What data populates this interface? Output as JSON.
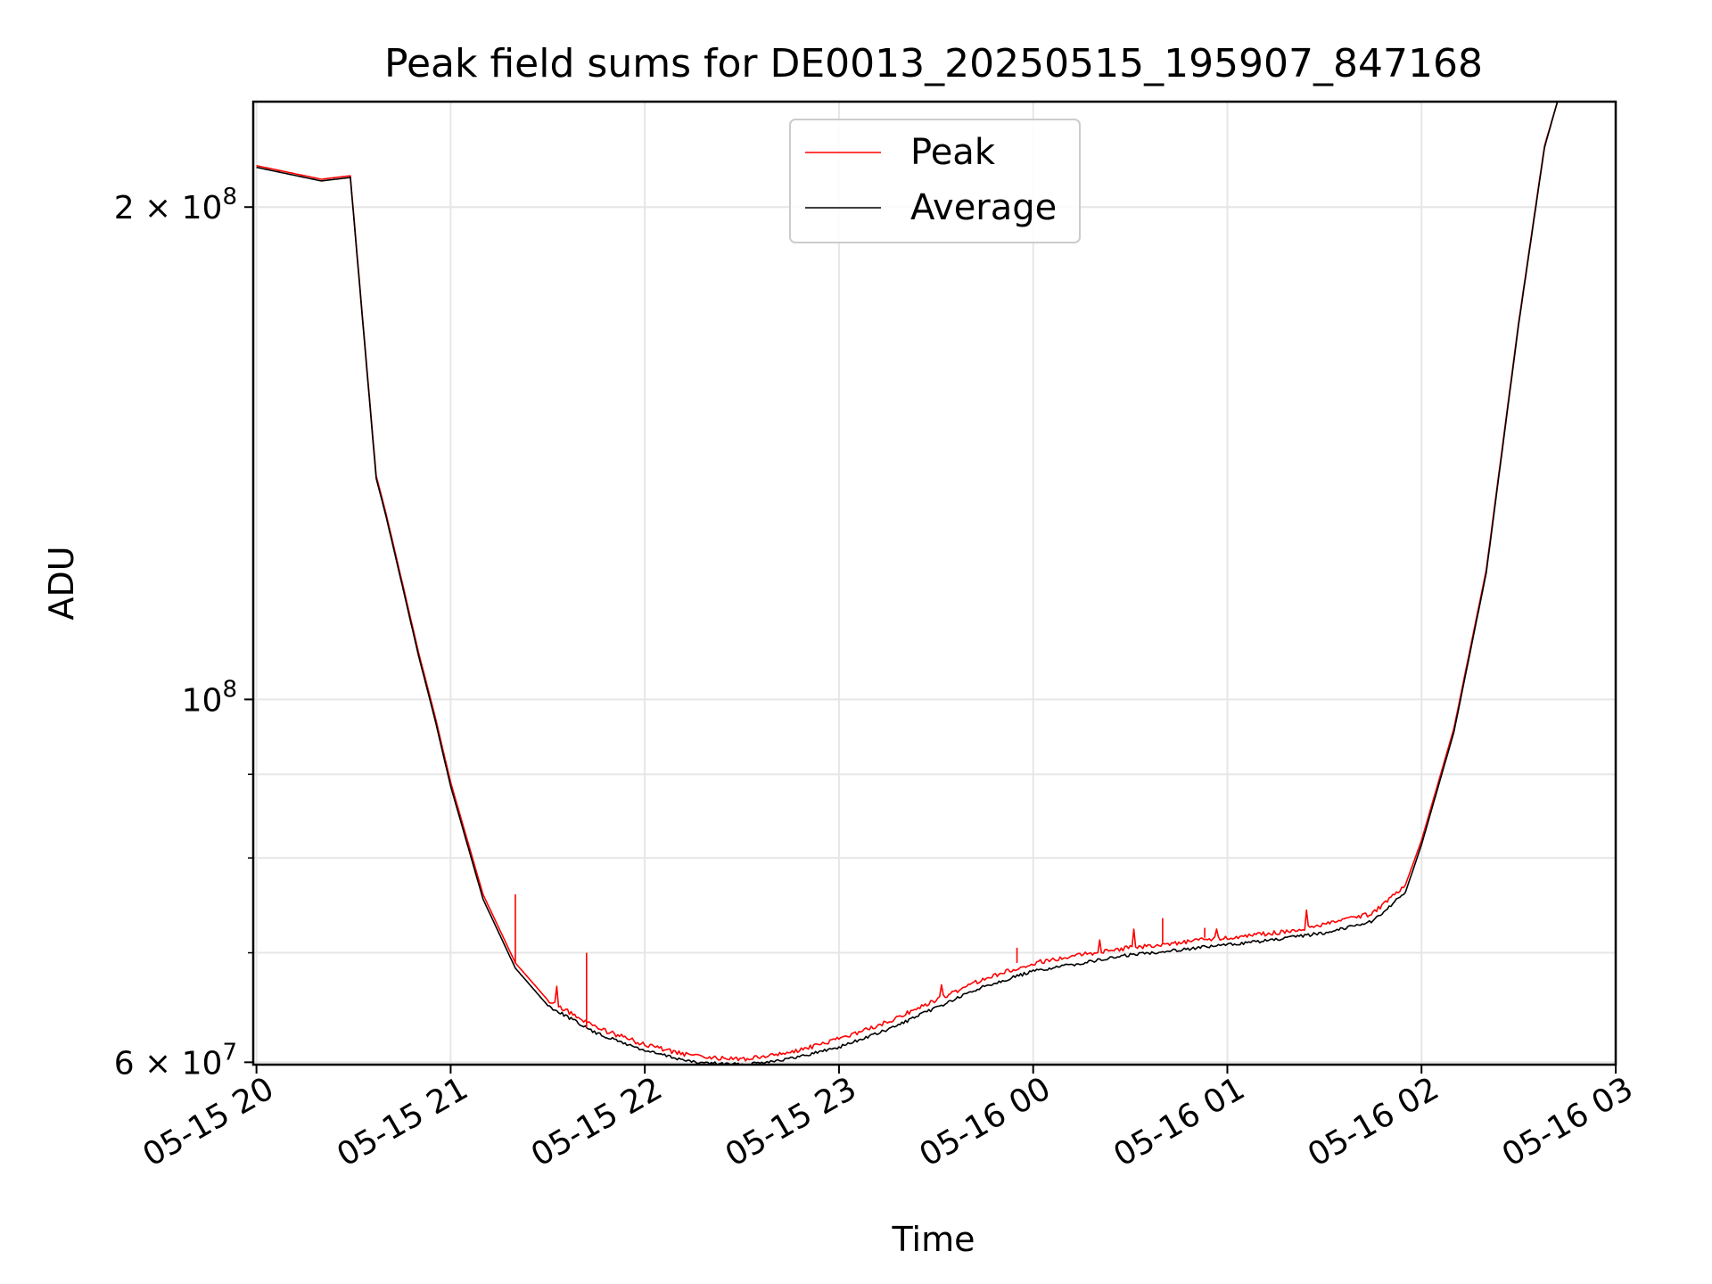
{
  "chart_data": {
    "type": "line",
    "title": "Peak field sums for DE0013_20250515_195907_847168",
    "xlabel": "Time",
    "ylabel": "ADU",
    "x_unit": "datetime",
    "xlim": [
      "2025-05-15 19:59",
      "2025-05-16 03:00"
    ],
    "ylim": [
      59800000,
      232000000
    ],
    "yscale": "log",
    "grid": true,
    "legend_position": "upper-center",
    "x_tick_labels": [
      "05-15 20",
      "05-15 21",
      "05-15 22",
      "05-15 23",
      "05-16 00",
      "05-16 01",
      "05-16 02",
      "05-16 03"
    ],
    "x_ticks": [
      "2025-05-15 20:00",
      "2025-05-15 21:00",
      "2025-05-15 22:00",
      "2025-05-15 23:00",
      "2025-05-16 00:00",
      "2025-05-16 01:00",
      "2025-05-16 02:00",
      "2025-05-16 03:00"
    ],
    "y_major_ticks": [
      {
        "value": 60000000,
        "mantissa": "6",
        "base": "10",
        "exp": "7"
      },
      {
        "value": 100000000,
        "mantissa": "",
        "base": "10",
        "exp": "8"
      },
      {
        "value": 200000000,
        "mantissa": "2",
        "base": "10",
        "exp": "8"
      }
    ],
    "y_minor_gridlines": [
      70000000,
      80000000,
      90000000
    ],
    "series": [
      {
        "name": "Peak",
        "color": "#ff0000",
        "x": [
          "2025-05-15 20:00",
          "2025-05-15 20:10",
          "2025-05-15 20:20",
          "2025-05-15 20:29",
          "2025-05-15 20:37",
          "2025-05-15 20:40",
          "2025-05-15 20:45",
          "2025-05-15 20:50",
          "2025-05-15 20:55",
          "2025-05-15 21:00",
          "2025-05-15 21:10",
          "2025-05-15 21:20",
          "2025-05-15 21:30",
          "2025-05-15 21:45",
          "2025-05-15 22:00",
          "2025-05-15 22:15",
          "2025-05-15 22:30",
          "2025-05-15 22:45",
          "2025-05-15 23:00",
          "2025-05-15 23:15",
          "2025-05-15 23:30",
          "2025-05-15 23:45",
          "2025-05-16 00:00",
          "2025-05-16 00:15",
          "2025-05-16 00:30",
          "2025-05-16 00:45",
          "2025-05-16 01:00",
          "2025-05-16 01:15",
          "2025-05-16 01:30",
          "2025-05-16 01:45",
          "2025-05-16 01:55",
          "2025-05-16 02:00",
          "2025-05-16 02:10",
          "2025-05-16 02:20",
          "2025-05-16 02:30",
          "2025-05-16 02:38",
          "2025-05-16 02:42"
        ],
        "y": [
          212000000,
          210000000,
          208000000,
          209000000,
          137000000,
          130000000,
          118000000,
          107000000,
          98000000,
          89000000,
          76000000,
          69000000,
          65500000,
          63000000,
          61500000,
          60500000,
          60200000,
          60800000,
          62000000,
          63500000,
          65500000,
          67500000,
          69000000,
          69800000,
          70500000,
          71000000,
          71500000,
          72000000,
          72800000,
          74000000,
          77000000,
          82000000,
          96000000,
          120000000,
          170000000,
          218000000,
          232000000
        ]
      },
      {
        "name": "Average",
        "color": "#000000",
        "x": [
          "2025-05-15 20:00",
          "2025-05-15 20:10",
          "2025-05-15 20:20",
          "2025-05-15 20:29",
          "2025-05-15 20:37",
          "2025-05-15 20:40",
          "2025-05-15 20:45",
          "2025-05-15 20:50",
          "2025-05-15 20:55",
          "2025-05-15 21:00",
          "2025-05-15 21:10",
          "2025-05-15 21:20",
          "2025-05-15 21:30",
          "2025-05-15 21:45",
          "2025-05-15 22:00",
          "2025-05-15 22:15",
          "2025-05-15 22:30",
          "2025-05-15 22:45",
          "2025-05-15 23:00",
          "2025-05-15 23:15",
          "2025-05-15 23:30",
          "2025-05-15 23:45",
          "2025-05-16 00:00",
          "2025-05-16 00:15",
          "2025-05-16 00:30",
          "2025-05-16 00:45",
          "2025-05-16 01:00",
          "2025-05-16 01:15",
          "2025-05-16 01:30",
          "2025-05-16 01:45",
          "2025-05-16 01:55",
          "2025-05-16 02:00",
          "2025-05-16 02:10",
          "2025-05-16 02:20",
          "2025-05-16 02:30",
          "2025-05-16 02:38",
          "2025-05-16 02:42"
        ],
        "y": [
          211500000,
          209500000,
          207500000,
          208500000,
          136500000,
          129500000,
          117500000,
          106500000,
          97500000,
          88500000,
          75500000,
          68500000,
          65000000,
          62500000,
          61000000,
          60000000,
          59800000,
          60300000,
          61300000,
          62800000,
          64800000,
          66800000,
          68200000,
          69000000,
          69800000,
          70300000,
          70800000,
          71300000,
          72000000,
          73200000,
          76200000,
          81500000,
          95500000,
          119500000,
          169500000,
          217500000,
          232000000
        ]
      }
    ]
  }
}
